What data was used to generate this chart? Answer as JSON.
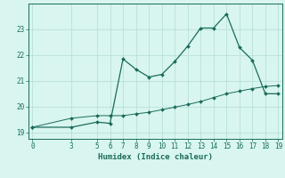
{
  "xlabel": "Humidex (Indice chaleur)",
  "background_color": "#d8f5f0",
  "grid_color": "#b8e0da",
  "line_color": "#1a6b5a",
  "spine_color": "#1a6b5a",
  "xlim": [
    -0.3,
    19.3
  ],
  "ylim": [
    18.75,
    24.0
  ],
  "yticks": [
    19,
    20,
    21,
    22,
    23
  ],
  "xticks": [
    0,
    3,
    5,
    6,
    7,
    8,
    9,
    10,
    11,
    12,
    13,
    14,
    15,
    16,
    17,
    18,
    19
  ],
  "line1_x": [
    0,
    3,
    5,
    6,
    7,
    8,
    9,
    10,
    11,
    12,
    13,
    14,
    15,
    16,
    17,
    18,
    19
  ],
  "line1_y": [
    19.2,
    19.2,
    19.4,
    19.35,
    21.85,
    21.45,
    21.15,
    21.25,
    21.75,
    22.35,
    23.05,
    23.05,
    23.6,
    22.3,
    21.8,
    20.5,
    20.5
  ],
  "line2_x": [
    0,
    3,
    5,
    6,
    7,
    8,
    9,
    10,
    11,
    12,
    13,
    14,
    15,
    16,
    17,
    18,
    19
  ],
  "line2_y": [
    19.2,
    19.55,
    19.65,
    19.65,
    19.65,
    19.72,
    19.78,
    19.88,
    19.98,
    20.08,
    20.2,
    20.35,
    20.5,
    20.6,
    20.7,
    20.78,
    20.82
  ],
  "markersize": 2.0,
  "linewidth1": 0.9,
  "linewidth2": 0.7,
  "tick_fontsize": 5.5,
  "xlabel_fontsize": 6.5
}
